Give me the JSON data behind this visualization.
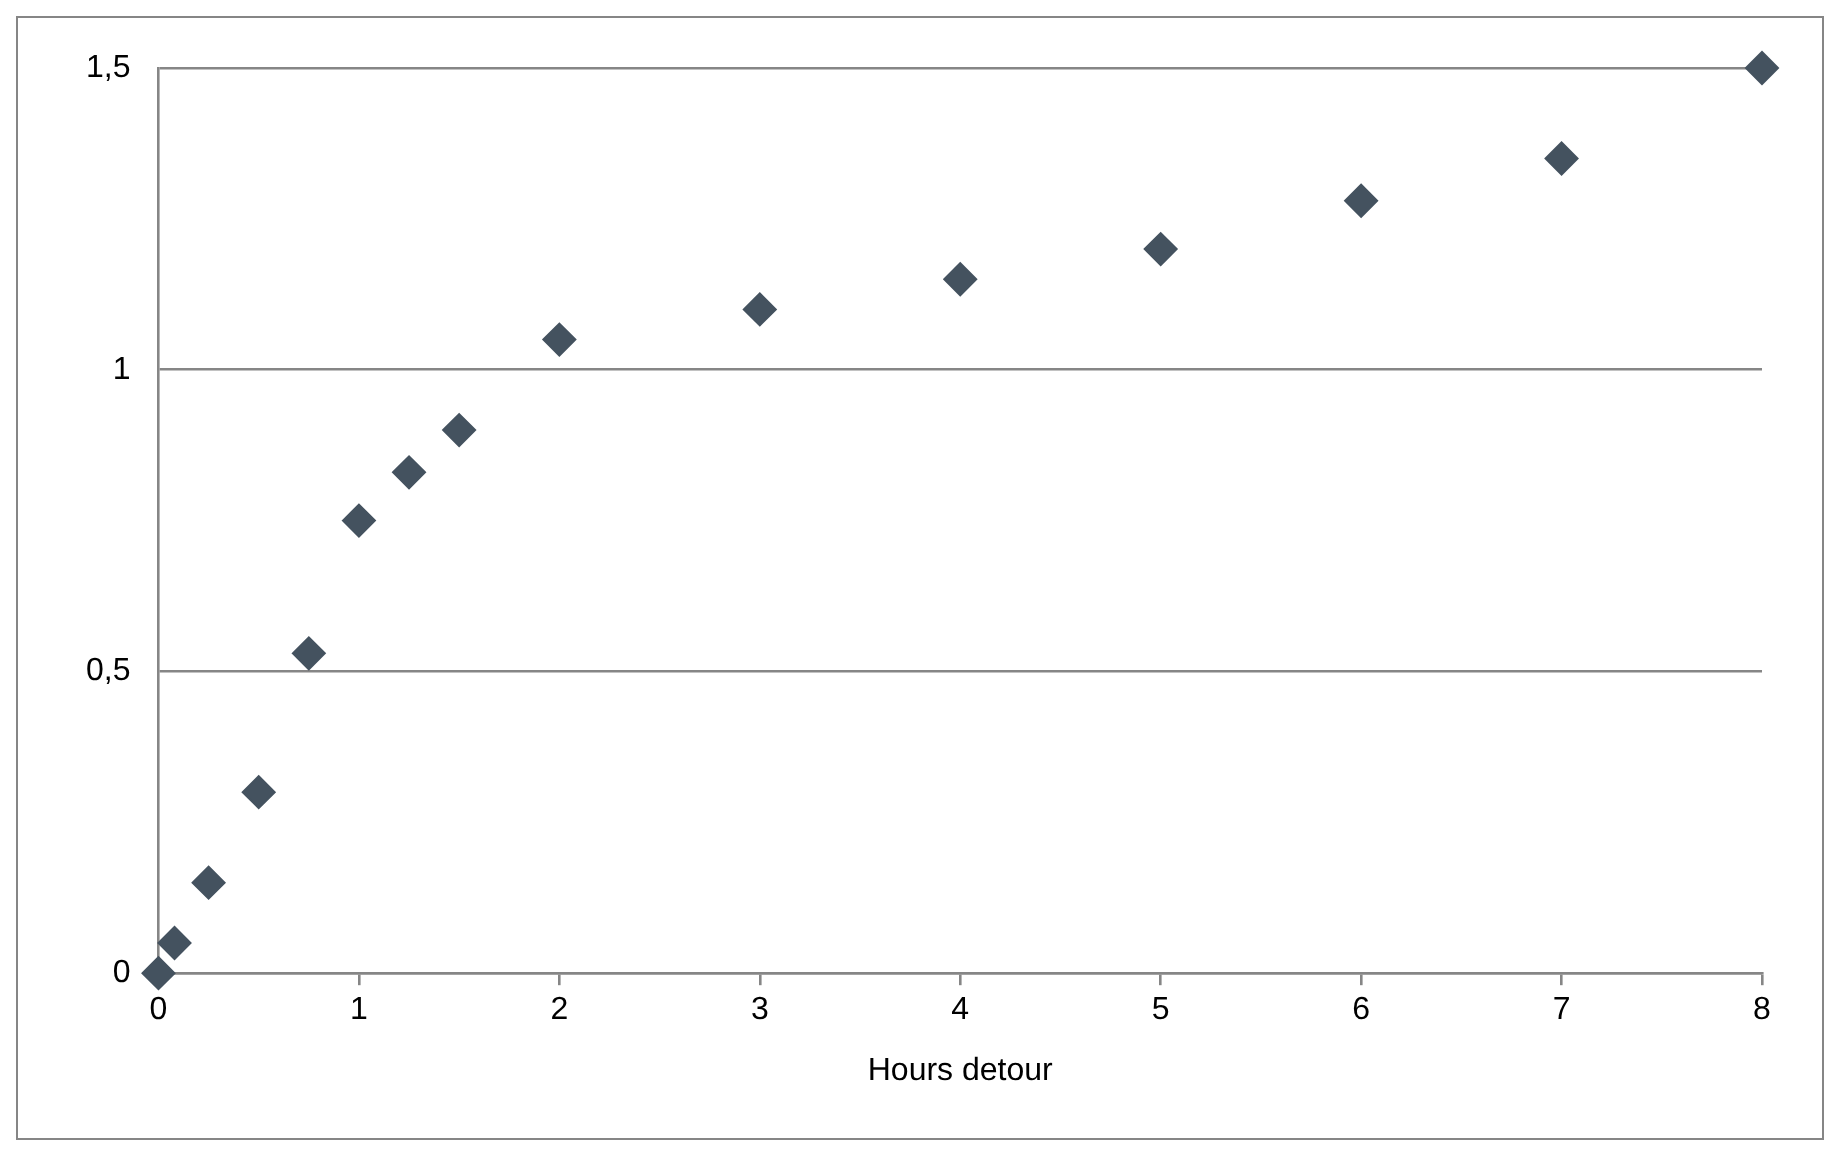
{
  "chart_data": {
    "type": "scatter",
    "xlabel": "Hours detour",
    "x": [
      0,
      0.08,
      0.25,
      0.5,
      0.75,
      1,
      1.25,
      1.5,
      2,
      3,
      4,
      5,
      6,
      7,
      8
    ],
    "series": [
      {
        "color": "#44525f",
        "values": [
          0,
          0.05,
          0.15,
          0.3,
          0.53,
          0.75,
          0.83,
          0.9,
          1.05,
          1.1,
          1.15,
          1.2,
          1.28,
          1.35,
          1.5
        ]
      }
    ],
    "xlim": [
      0,
      8
    ],
    "xticks": [
      0,
      1,
      2,
      3,
      4,
      5,
      6,
      7,
      8
    ],
    "ylim": [
      0,
      1.5
    ],
    "yticks": [
      0,
      {
        "value": 0.5,
        "label": "0,5"
      },
      1,
      {
        "value": 1.5,
        "label": "1,5"
      }
    ],
    "grid": "y",
    "marker": "diamond",
    "legend": false
  }
}
